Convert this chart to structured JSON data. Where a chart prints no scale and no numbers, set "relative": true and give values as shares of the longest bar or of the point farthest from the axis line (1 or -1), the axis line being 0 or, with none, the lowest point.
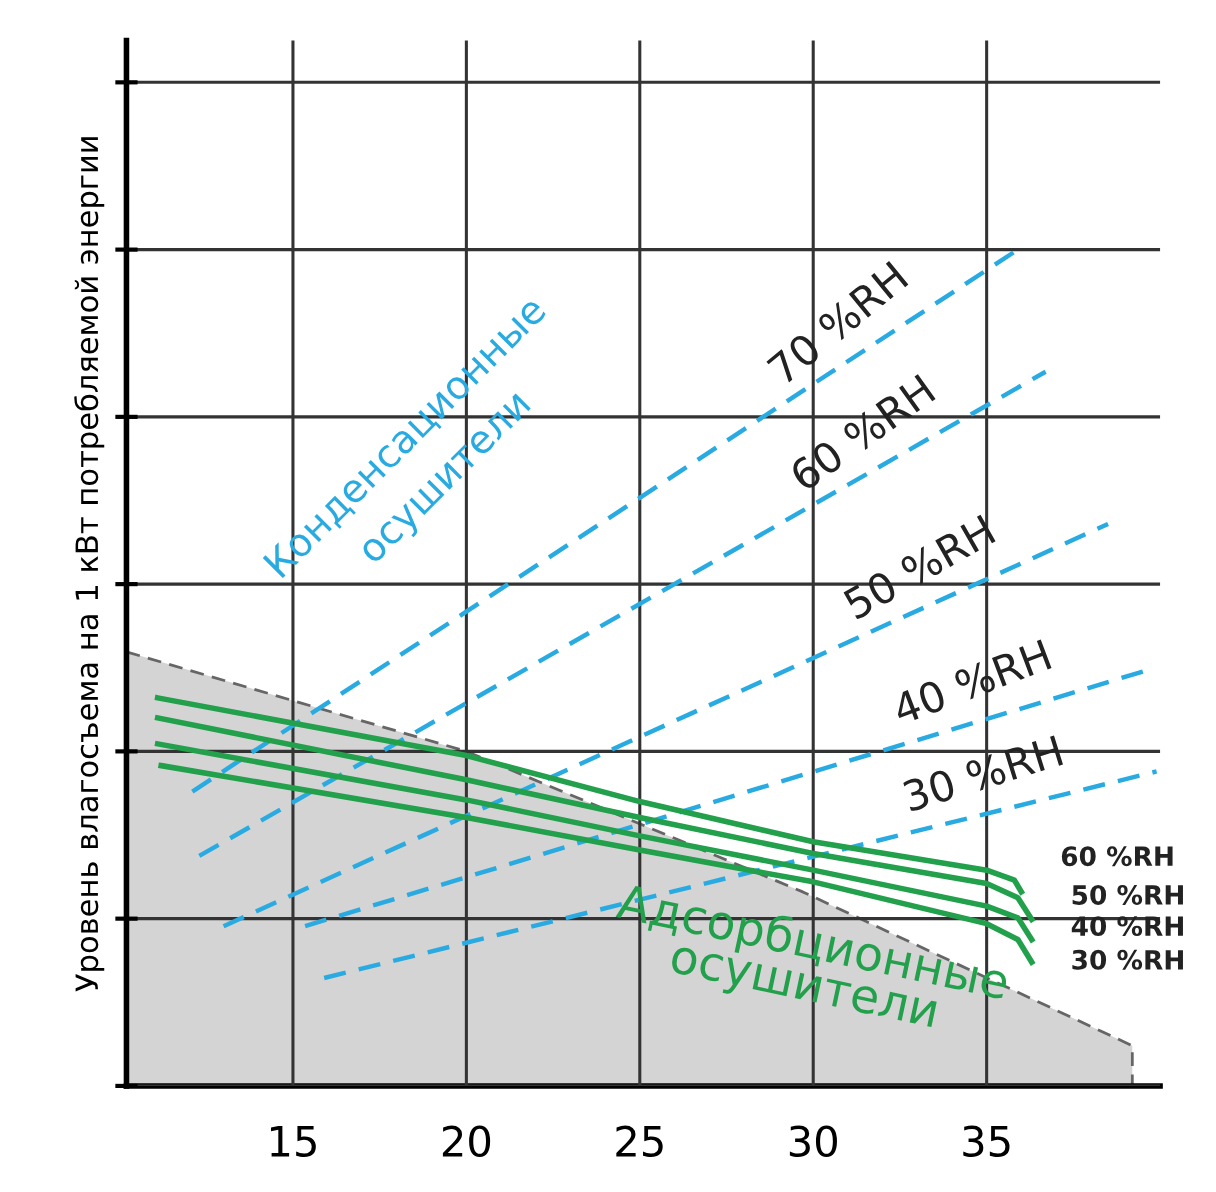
{
  "chart_data": {
    "type": "line",
    "ylabel": "Уровень влагосъема на 1 кВт потребляемой энергии",
    "relative": true,
    "xlim": [
      10.2,
      40
    ],
    "xticks": [
      15,
      20,
      25,
      30,
      35
    ],
    "grid": true,
    "legend": false,
    "marker": "none",
    "annotations": [
      "Конденсационные осушители",
      "Адсорбционные осушители"
    ],
    "series": [
      {
        "type": "area",
        "color": "#d4d4d4",
        "line_style": "dashed",
        "x": [
          10.2,
          20,
          29.7,
          39.2,
          39.2
        ],
        "values": [
          0.519,
          0.4,
          0.232,
          0.048,
          0
        ]
      },
      {
        "name": "70 %RH",
        "color": "#29abe2",
        "line_style": "dashed",
        "x": [
          12.1,
          35.9
        ],
        "values": [
          0.352,
          1.0
        ]
      },
      {
        "name": "60 %RH",
        "color": "#29abe2",
        "line_style": "dashed",
        "x": [
          12.3,
          36.7
        ],
        "values": [
          0.275,
          0.854
        ]
      },
      {
        "name": "50 %RH",
        "color": "#29abe2",
        "line_style": "dashed",
        "x": [
          13.0,
          38.5
        ],
        "values": [
          0.191,
          0.672
        ]
      },
      {
        "name": "40 %RH",
        "color": "#29abe2",
        "line_style": "dashed",
        "x": [
          15.35,
          39.7
        ],
        "values": [
          0.191,
          0.498
        ]
      },
      {
        "name": "30 %RH",
        "color": "#29abe2",
        "line_style": "dashed",
        "x": [
          15.9,
          39.9
        ],
        "values": [
          0.129,
          0.376
        ]
      },
      {
        "name": "60 %RH",
        "color": "#22a04b",
        "line_style": "solid",
        "x": [
          11.1,
          20,
          25,
          30,
          35,
          35.8,
          36.0
        ],
        "values": [
          0.464,
          0.395,
          0.34,
          0.292,
          0.258,
          0.246,
          0.232
        ]
      },
      {
        "name": "50 %RH",
        "color": "#22a04b",
        "line_style": "solid",
        "x": [
          11.1,
          20,
          25,
          30,
          35,
          35.9,
          36.3
        ],
        "values": [
          0.44,
          0.366,
          0.321,
          0.278,
          0.242,
          0.225,
          0.199
        ]
      },
      {
        "name": "40 %RH",
        "color": "#22a04b",
        "line_style": "solid",
        "x": [
          11.1,
          20,
          25,
          30,
          35,
          35.9,
          36.3
        ],
        "values": [
          0.409,
          0.342,
          0.299,
          0.258,
          0.215,
          0.201,
          0.175
        ]
      },
      {
        "name": "30 %RH",
        "color": "#22a04b",
        "line_style": "solid",
        "x": [
          11.2,
          20,
          25,
          30,
          35,
          35.9,
          36.3
        ],
        "values": [
          0.383,
          0.321,
          0.282,
          0.244,
          0.194,
          0.175,
          0.148
        ]
      }
    ]
  }
}
